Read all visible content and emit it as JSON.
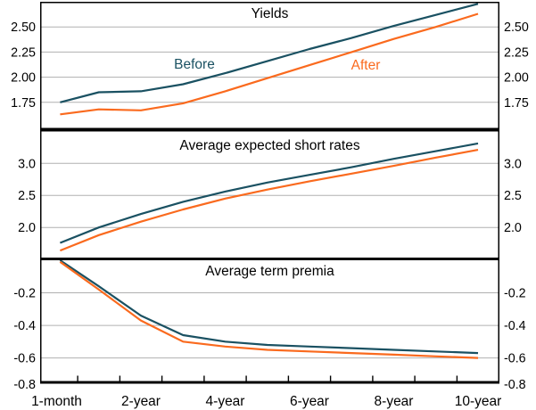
{
  "figure": {
    "background": "#ffffff",
    "axis_color": "#000000",
    "grid_color": "#b0b0b0",
    "text_color": "#000000",
    "before_color": "#1a5162",
    "after_color": "#fa6a1e",
    "x_axis": {
      "tick_labels": [
        "1-month",
        "2-year",
        "4-year",
        "6-year",
        "8-year",
        "10-year"
      ],
      "tick_label_years": [
        0,
        2,
        4,
        6,
        8,
        10
      ],
      "minor_tick_years": [
        0.5,
        1.5,
        2.5,
        3.5,
        4.5,
        5.5,
        6.5,
        7.5,
        8.5,
        9.5
      ],
      "range_years": [
        0,
        10
      ]
    }
  },
  "chart_data": [
    {
      "type": "line",
      "title": "Yields",
      "unit": "%",
      "ylabel": "%",
      "grid": true,
      "legend_position": "inline",
      "show_legend": true,
      "x_years": [
        0.083,
        1,
        2,
        3,
        4,
        5,
        6,
        7,
        8,
        9,
        10
      ],
      "ylim": [
        1.5,
        2.75
      ],
      "y_ticks": [
        {
          "label": "2.50",
          "value": 2.5,
          "grid": true
        },
        {
          "label": "2.25",
          "value": 2.25,
          "grid": true
        },
        {
          "label": "2.00",
          "value": 2.0,
          "grid": true
        },
        {
          "label": "1.75",
          "value": 1.75,
          "grid": true
        }
      ],
      "series": [
        {
          "name": "Before",
          "color": "#1a5162",
          "values": [
            1.75,
            1.85,
            1.86,
            1.93,
            2.04,
            2.16,
            2.28,
            2.39,
            2.51,
            2.62,
            2.73
          ]
        },
        {
          "name": "After",
          "color": "#fa6a1e",
          "values": [
            1.63,
            1.68,
            1.67,
            1.74,
            1.86,
            1.99,
            2.12,
            2.25,
            2.38,
            2.5,
            2.63
          ]
        }
      ]
    },
    {
      "type": "line",
      "title": "Average expected short rates",
      "unit": "%",
      "ylabel": "%",
      "grid": true,
      "show_legend": false,
      "x_years": [
        0.083,
        1,
        2,
        3,
        4,
        5,
        6,
        7,
        8,
        9,
        10
      ],
      "ylim": [
        1.53,
        3.49
      ],
      "y_ticks": [
        {
          "label": "3.0",
          "value": 3.0,
          "grid": true
        },
        {
          "label": "2.5",
          "value": 2.5,
          "grid": true
        },
        {
          "label": "2.0",
          "value": 2.0,
          "grid": true
        }
      ],
      "series": [
        {
          "name": "Before",
          "color": "#1a5162",
          "values": [
            1.76,
            2.0,
            2.21,
            2.4,
            2.56,
            2.7,
            2.82,
            2.94,
            3.07,
            3.19,
            3.31
          ]
        },
        {
          "name": "After",
          "color": "#fa6a1e",
          "values": [
            1.64,
            1.88,
            2.09,
            2.28,
            2.45,
            2.59,
            2.72,
            2.84,
            2.96,
            3.09,
            3.21
          ]
        }
      ]
    },
    {
      "type": "line",
      "title": "Average term premia",
      "unit": "%",
      "ylabel": "%",
      "grid": true,
      "show_legend": false,
      "x_years": [
        0.083,
        1,
        2,
        3,
        4,
        5,
        6,
        7,
        8,
        9,
        10
      ],
      "ylim": [
        -0.75,
        0.0
      ],
      "y_ticks": [
        {
          "label": "-0.2",
          "value": -0.2,
          "grid": true
        },
        {
          "label": "-0.4",
          "value": -0.4,
          "grid": true
        },
        {
          "label": "-0.6",
          "value": -0.6,
          "grid": true
        },
        {
          "label": "-0.8",
          "value": -0.8,
          "grid": false
        }
      ],
      "series": [
        {
          "name": "Before",
          "color": "#1a5162",
          "values": [
            0.0,
            -0.16,
            -0.34,
            -0.46,
            -0.5,
            -0.52,
            -0.53,
            -0.54,
            -0.55,
            -0.56,
            -0.57
          ]
        },
        {
          "name": "After",
          "color": "#fa6a1e",
          "values": [
            -0.01,
            -0.18,
            -0.37,
            -0.5,
            -0.53,
            -0.55,
            -0.56,
            -0.57,
            -0.58,
            -0.59,
            -0.6
          ]
        }
      ]
    }
  ]
}
